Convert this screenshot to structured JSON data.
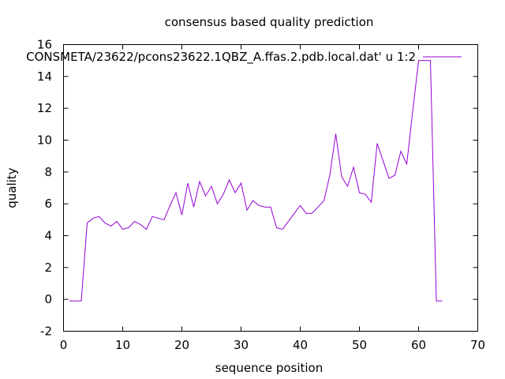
{
  "chart_data": {
    "type": "line",
    "title": "consensus based quality prediction",
    "xlabel": "sequence position",
    "ylabel": "quality",
    "xlim": [
      0,
      70
    ],
    "ylim": [
      -2,
      16
    ],
    "xticks": [
      0,
      10,
      20,
      30,
      40,
      50,
      60,
      70
    ],
    "yticks": [
      -2,
      0,
      2,
      4,
      6,
      8,
      10,
      12,
      14,
      16
    ],
    "grid": false,
    "legend_position": "top-right",
    "series": [
      {
        "name": "CONSMETA/23622/pcons23622.1QBZ_A.ffas.2.pdb.local.dat' u 1:2",
        "color": "#9400d3",
        "x": [
          1,
          2,
          3,
          4,
          5,
          6,
          7,
          8,
          9,
          10,
          11,
          12,
          13,
          14,
          15,
          16,
          17,
          18,
          19,
          20,
          21,
          22,
          23,
          24,
          25,
          26,
          27,
          28,
          29,
          30,
          31,
          32,
          33,
          34,
          35,
          36,
          37,
          38,
          39,
          40,
          41,
          42,
          43,
          44,
          45,
          46,
          47,
          48,
          49,
          50,
          51,
          52,
          53,
          54,
          55,
          56,
          57,
          58,
          59,
          60,
          61,
          62,
          63,
          64
        ],
        "y": [
          -0.1,
          -0.1,
          -0.1,
          4.8,
          5.1,
          5.2,
          4.8,
          4.6,
          4.9,
          4.4,
          4.5,
          4.9,
          4.7,
          4.4,
          5.2,
          5.1,
          5.0,
          5.9,
          6.7,
          5.3,
          7.3,
          5.8,
          7.4,
          6.5,
          7.1,
          6.0,
          6.6,
          7.5,
          6.7,
          7.3,
          5.6,
          6.2,
          5.9,
          5.8,
          5.8,
          4.5,
          4.4,
          4.9,
          5.4,
          5.9,
          5.4,
          5.4,
          5.8,
          6.2,
          7.8,
          10.4,
          7.7,
          7.1,
          8.3,
          6.7,
          6.6,
          6.1,
          9.8,
          8.7,
          7.6,
          7.8,
          9.3,
          8.5,
          11.8,
          15.0,
          15.0,
          15.0,
          -0.1,
          -0.1
        ]
      }
    ]
  }
}
